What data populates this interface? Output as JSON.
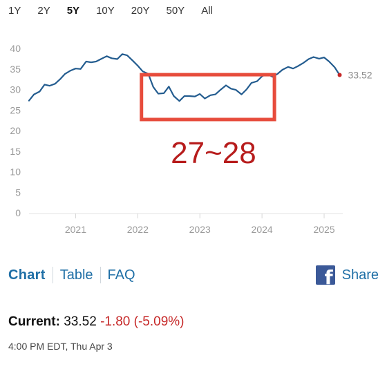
{
  "ranges": [
    {
      "label": "1Y",
      "active": false
    },
    {
      "label": "2Y",
      "active": false
    },
    {
      "label": "5Y",
      "active": true
    },
    {
      "label": "10Y",
      "active": false
    },
    {
      "label": "20Y",
      "active": false
    },
    {
      "label": "50Y",
      "active": false
    },
    {
      "label": "All",
      "active": false
    }
  ],
  "chart_data": {
    "type": "line",
    "ylim": [
      0,
      40
    ],
    "yticks": [
      "0",
      "5",
      "10",
      "15",
      "20",
      "25",
      "30",
      "35",
      "40"
    ],
    "xlim": [
      2020.25,
      2025.3
    ],
    "xticks": [
      {
        "value": 2021,
        "label": "2021"
      },
      {
        "value": 2022,
        "label": "2022"
      },
      {
        "value": 2023,
        "label": "2023"
      },
      {
        "value": 2024,
        "label": "2024"
      },
      {
        "value": 2025,
        "label": "2025"
      }
    ],
    "series": [
      {
        "line_color": "#235c8f",
        "x": [
          2020.25,
          2020.33,
          2020.42,
          2020.5,
          2020.58,
          2020.67,
          2020.75,
          2020.83,
          2020.92,
          2021.0,
          2021.08,
          2021.17,
          2021.25,
          2021.33,
          2021.42,
          2021.5,
          2021.58,
          2021.67,
          2021.75,
          2021.83,
          2021.92,
          2022.0,
          2022.08,
          2022.17,
          2022.25,
          2022.33,
          2022.42,
          2022.5,
          2022.58,
          2022.67,
          2022.75,
          2022.83,
          2022.92,
          2023.0,
          2023.08,
          2023.17,
          2023.25,
          2023.33,
          2023.42,
          2023.5,
          2023.58,
          2023.67,
          2023.75,
          2023.83,
          2023.92,
          2024.0,
          2024.08,
          2024.17,
          2024.25,
          2024.33,
          2024.42,
          2024.5,
          2024.58,
          2024.67,
          2024.75,
          2024.83,
          2024.92,
          2025.0,
          2025.08,
          2025.17,
          2025.25
        ],
        "y": [
          27.3,
          28.8,
          29.5,
          31.2,
          30.9,
          31.4,
          32.5,
          33.8,
          34.6,
          35.1,
          35.0,
          36.8,
          36.6,
          36.8,
          37.5,
          38.1,
          37.6,
          37.4,
          38.6,
          38.3,
          37.0,
          35.8,
          34.4,
          33.8,
          30.6,
          29.0,
          29.1,
          30.7,
          28.4,
          27.2,
          28.4,
          28.4,
          28.3,
          28.9,
          27.8,
          28.6,
          28.8,
          29.9,
          31.0,
          30.2,
          29.9,
          28.8,
          30.0,
          31.6,
          32.0,
          33.2,
          33.8,
          33.1,
          33.8,
          34.8,
          35.5,
          35.1,
          35.7,
          36.5,
          37.4,
          37.9,
          37.5,
          37.8,
          36.8,
          35.4,
          33.52
        ]
      }
    ],
    "last_value_label": "33.52",
    "last_point_color": "#c62828",
    "annotation": {
      "text": "27~28",
      "box_color": "#e74c3c",
      "text_color": "#b71c1c",
      "box_x": [
        2022.06,
        2024.2
      ],
      "box_y": [
        22.7,
        33.6
      ]
    },
    "grid": false
  },
  "links": {
    "chart": "Chart",
    "table": "Table",
    "faq": "FAQ",
    "share": "Share",
    "share_icon": "facebook-icon"
  },
  "current": {
    "label": "Current:",
    "value": "33.52",
    "change": "-1.80 (-5.09%)"
  },
  "timestamp": "4:00 PM EDT, Thu Apr 3"
}
